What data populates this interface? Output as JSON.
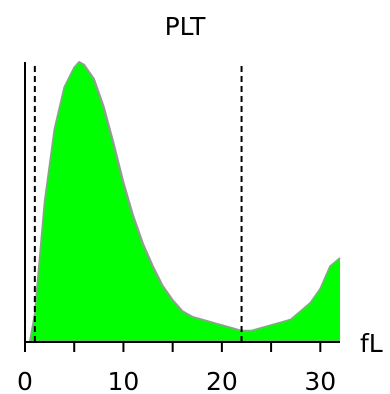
{
  "chart_data": {
    "type": "area",
    "title": "PLT",
    "unit_label": "fL",
    "xlim": [
      0,
      32
    ],
    "ylim": [
      0,
      1
    ],
    "x_ticks": [
      0,
      10,
      20,
      30
    ],
    "minor_x_ticks": [
      5,
      15,
      25
    ],
    "grid": false,
    "legend": "none",
    "fill_color": "#00ff00",
    "outline_color": "#999999",
    "reference_lines": [
      {
        "x": 1,
        "style": "dashed"
      },
      {
        "x": 22,
        "style": "dashed"
      }
    ],
    "series": [
      {
        "x": [
          0.5,
          1,
          1.5,
          2,
          3,
          4,
          5,
          5.5,
          6,
          7,
          8,
          9,
          10,
          11,
          12,
          13,
          14,
          15,
          16,
          17,
          18,
          19,
          20,
          21,
          22,
          23,
          24,
          25,
          26,
          27,
          28,
          29,
          30,
          31,
          32
        ],
        "y": [
          0.0,
          0.1,
          0.3,
          0.5,
          0.76,
          0.91,
          0.98,
          1.0,
          0.99,
          0.94,
          0.84,
          0.71,
          0.57,
          0.45,
          0.35,
          0.27,
          0.2,
          0.15,
          0.11,
          0.09,
          0.08,
          0.07,
          0.06,
          0.05,
          0.04,
          0.04,
          0.05,
          0.06,
          0.07,
          0.08,
          0.11,
          0.14,
          0.19,
          0.27,
          0.3
        ]
      }
    ]
  }
}
